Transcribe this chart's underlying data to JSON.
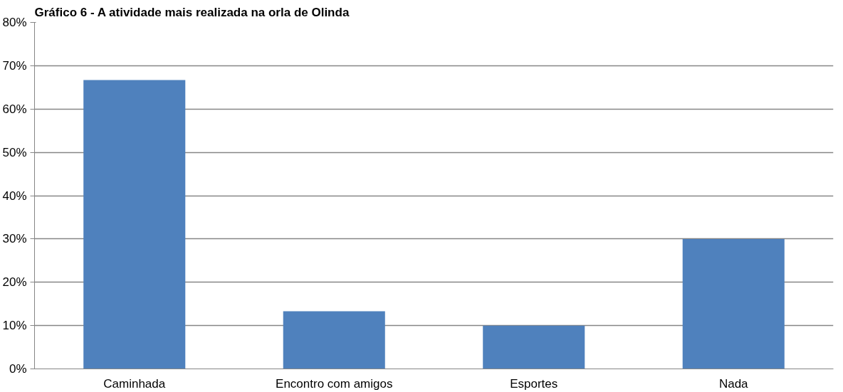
{
  "chart_data": {
    "type": "bar",
    "title": "Gráfico 6 - A atividade mais realizada na orla de Olinda",
    "categories": [
      "Caminhada",
      "Encontro com amigos",
      "Esportes",
      "Nada"
    ],
    "values": [
      66.7,
      13.3,
      10,
      30
    ],
    "color": "#4f81bd",
    "ylim": [
      0,
      80
    ],
    "yticks": [
      {
        "value": 0,
        "label": "0%"
      },
      {
        "value": 10,
        "label": "10%"
      },
      {
        "value": 20,
        "label": "20%"
      },
      {
        "value": 30,
        "label": "30%"
      },
      {
        "value": 40,
        "label": "40%"
      },
      {
        "value": 50,
        "label": "50%"
      },
      {
        "value": 60,
        "label": "60%"
      },
      {
        "value": 70,
        "label": "70%"
      },
      {
        "value": 80,
        "label": "80%"
      }
    ],
    "grid": "y"
  }
}
